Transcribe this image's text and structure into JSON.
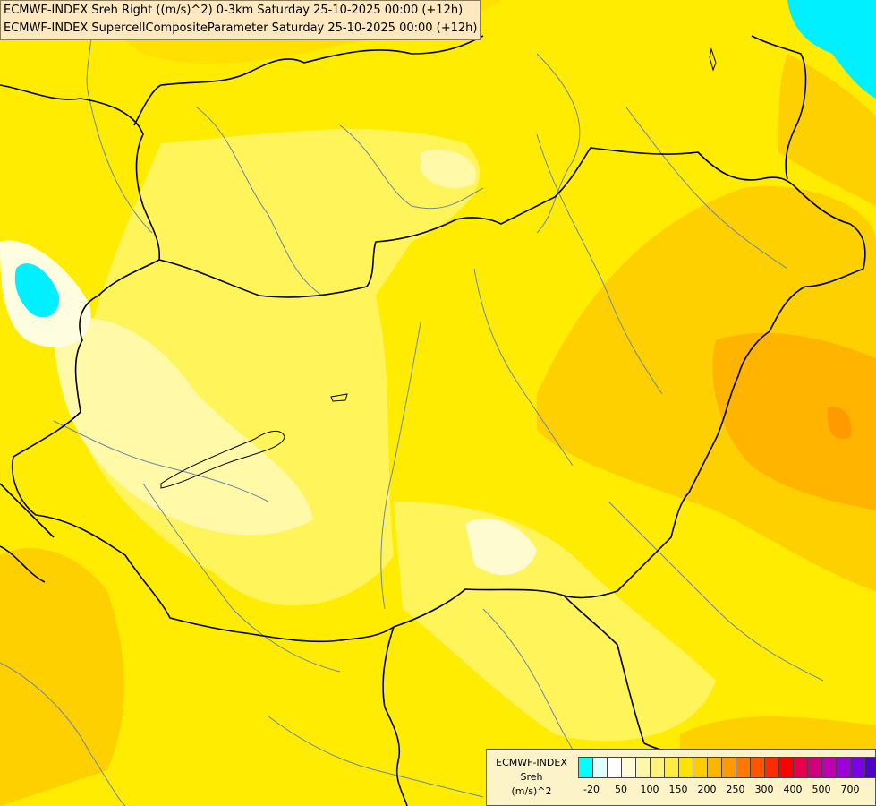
{
  "header": {
    "line1": "ECMWF-INDEX Sreh Right ((m/s)^2) 0-3km Saturday 25-10-2025 00:00 (+12h)",
    "line2": "ECMWF-INDEX SupercellCompositeParameter Saturday 25-10-2025 00:00 (+12h)"
  },
  "legend": {
    "model": "ECMWF-INDEX",
    "param": "Sreh",
    "unit": "(m/s)^2",
    "colors": [
      "#00ffff",
      "#e0ffff",
      "#ffffff",
      "#fffbd8",
      "#fff7a8",
      "#fff27a",
      "#ffec3c",
      "#ffe400",
      "#ffcc00",
      "#ffb400",
      "#ff9a00",
      "#ff7800",
      "#ff5500",
      "#ff2a00",
      "#ff0000",
      "#e8004a",
      "#d0007c",
      "#c000b0",
      "#a000d8",
      "#7a00e8",
      "#5000c8",
      "#2a00a0",
      "#10007a"
    ],
    "ticks": [
      "-20",
      "50",
      "100",
      "150",
      "200",
      "250",
      "300",
      "400",
      "500",
      "700"
    ]
  }
}
